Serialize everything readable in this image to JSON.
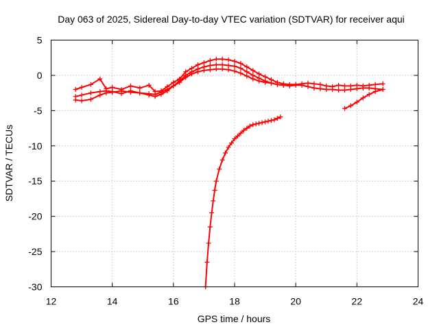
{
  "chart_data": {
    "type": "scatter",
    "title": "Day 063 of 2025, Sidereal Day-to-day VTEC variation (SDTVAR) for receiver aqui",
    "xlabel": "GPS time / hours",
    "ylabel": "SDTVAR / TECUs",
    "xlim": [
      12,
      24
    ],
    "ylim": [
      -30,
      5
    ],
    "xticks": [
      12,
      14,
      16,
      18,
      20,
      22,
      24
    ],
    "yticks": [
      -30,
      -25,
      -20,
      -15,
      -10,
      -5,
      0,
      5
    ],
    "xtick_labels": [
      "12",
      "14",
      "16",
      "18",
      "20",
      "22",
      "24"
    ],
    "ytick_labels": [
      "-30",
      "-25",
      "-20",
      "-15",
      "-10",
      "-5",
      "0",
      "5"
    ],
    "grid": true,
    "marker": "+",
    "series_color": "#ff0000",
    "series": [
      {
        "name": "track-1",
        "x": [
          12.8,
          13.0,
          13.3,
          13.6,
          13.8,
          14.0,
          14.3,
          14.6,
          14.9,
          15.2,
          15.4,
          15.6,
          15.8,
          16.0,
          16.2,
          16.4,
          16.6,
          16.8,
          17.0,
          17.2,
          17.4,
          17.6,
          17.8,
          18.0,
          18.2,
          18.4,
          18.6,
          18.8,
          19.0,
          19.2,
          19.4,
          19.6,
          19.8,
          20.0,
          20.2,
          20.4,
          20.6,
          20.8,
          21.0,
          21.2,
          21.4,
          21.6,
          21.8,
          22.0,
          22.2,
          22.4,
          22.6,
          22.85
        ],
        "y": [
          -2.0,
          -1.7,
          -1.3,
          -0.5,
          -1.9,
          -1.7,
          -2.0,
          -1.5,
          -1.8,
          -1.4,
          -2.3,
          -2.2,
          -1.6,
          -1.0,
          -0.5,
          0.5,
          1.0,
          1.5,
          1.8,
          2.1,
          2.3,
          2.3,
          2.2,
          2.0,
          1.7,
          1.2,
          0.7,
          0.2,
          -0.2,
          -0.6,
          -1.0,
          -1.2,
          -1.3,
          -1.3,
          -1.2,
          -1.1,
          -1.2,
          -1.3,
          -1.5,
          -1.6,
          -1.4,
          -1.5,
          -1.5,
          -1.4,
          -1.5,
          -1.4,
          -1.3,
          -1.2
        ]
      },
      {
        "name": "track-2",
        "x": [
          12.8,
          13.0,
          13.3,
          13.6,
          13.8,
          14.0,
          14.3,
          14.6,
          14.9,
          15.2,
          15.4,
          15.6,
          15.8,
          16.0,
          16.2,
          16.4,
          16.6,
          16.8,
          17.0,
          17.2,
          17.4,
          17.6,
          17.8,
          18.0,
          18.2,
          18.4,
          18.6,
          18.8,
          19.0,
          19.2,
          19.4,
          19.6,
          19.8,
          20.0,
          20.2,
          20.4,
          20.6,
          20.8,
          21.0,
          21.2,
          21.4,
          21.6,
          21.8,
          22.0,
          22.2,
          22.4,
          22.6,
          22.85
        ],
        "y": [
          -3.0,
          -2.8,
          -2.5,
          -2.3,
          -2.2,
          -2.3,
          -2.6,
          -2.2,
          -2.5,
          -2.8,
          -3.0,
          -2.7,
          -2.2,
          -1.5,
          -0.8,
          0.0,
          0.5,
          0.9,
          1.2,
          1.4,
          1.5,
          1.5,
          1.4,
          1.3,
          1.0,
          0.5,
          0.0,
          -0.4,
          -0.8,
          -1.1,
          -1.3,
          -1.4,
          -1.5,
          -1.4,
          -1.4,
          -1.6,
          -1.8,
          -1.9,
          -2.0,
          -2.0,
          -2.1,
          -2.1,
          -2.0,
          -1.9,
          -1.8,
          -1.8,
          -1.9,
          -2.0
        ]
      },
      {
        "name": "track-3",
        "x": [
          12.8,
          13.0,
          13.3,
          13.6,
          13.8,
          14.0,
          14.3,
          14.6,
          14.9,
          15.2,
          15.4,
          15.6,
          15.8,
          16.0,
          16.2,
          16.4,
          16.6,
          16.8,
          17.0,
          17.2,
          17.4,
          17.6,
          17.8,
          18.0,
          18.2,
          18.4,
          18.6,
          18.8,
          19.0,
          19.2,
          19.4,
          19.6
        ],
        "y": [
          -3.5,
          -3.6,
          -3.4,
          -2.8,
          -2.5,
          -2.4,
          -2.2,
          -2.4,
          -2.5,
          -2.6,
          -2.7,
          -2.4,
          -2.0,
          -1.5,
          -1.0,
          -0.3,
          0.2,
          0.5,
          0.7,
          0.8,
          0.9,
          0.9,
          0.8,
          0.6,
          0.3,
          -0.1,
          -0.5,
          -0.8,
          -1.0,
          -1.1,
          -1.3,
          -1.4
        ]
      },
      {
        "name": "track-4",
        "x": [
          21.6,
          21.8,
          22.0,
          22.2,
          22.4,
          22.6,
          22.85
        ],
        "y": [
          -4.7,
          -4.3,
          -3.8,
          -3.2,
          -2.7,
          -2.3,
          -2.0
        ]
      },
      {
        "name": "track-5",
        "x": [
          17.05,
          17.1,
          17.15,
          17.2,
          17.25,
          17.3,
          17.35,
          17.4,
          17.5,
          17.6,
          17.7,
          17.8,
          17.9,
          18.0,
          18.1,
          18.2,
          18.3,
          18.4,
          18.5,
          18.6,
          18.7,
          18.8,
          18.9,
          19.0,
          19.1,
          19.2,
          19.3,
          19.4,
          19.5
        ],
        "y": [
          -30.0,
          -26.5,
          -23.8,
          -21.5,
          -19.5,
          -17.8,
          -16.3,
          -15.0,
          -13.3,
          -12.0,
          -11.0,
          -10.2,
          -9.6,
          -9.0,
          -8.6,
          -8.2,
          -7.8,
          -7.5,
          -7.2,
          -7.0,
          -6.9,
          -6.8,
          -6.7,
          -6.6,
          -6.5,
          -6.4,
          -6.3,
          -6.1,
          -5.9
        ]
      }
    ]
  }
}
